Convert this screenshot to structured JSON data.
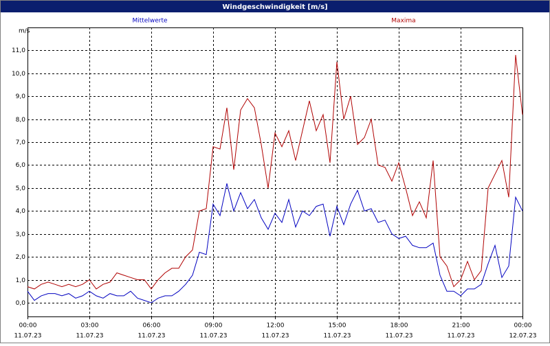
{
  "chart_data": {
    "type": "line",
    "title": "Windgeschwindigkeit [m/s]",
    "y_label": "m/s",
    "x": [
      0,
      20,
      40,
      60,
      80,
      100,
      120,
      140,
      160,
      180,
      200,
      220,
      240,
      260,
      280,
      300,
      320,
      340,
      360,
      380,
      400,
      420,
      440,
      460,
      480,
      500,
      520,
      540,
      560,
      580,
      600,
      620,
      640,
      660,
      680,
      700,
      720,
      740,
      760,
      780,
      800,
      820,
      840,
      860,
      880,
      900,
      920,
      940,
      960,
      980,
      1000,
      1020,
      1040,
      1060,
      1080,
      1100,
      1120,
      1140,
      1160,
      1180,
      1200,
      1220,
      1240,
      1260,
      1280,
      1300,
      1320,
      1340,
      1360,
      1380,
      1400,
      1420,
      1440
    ],
    "series": [
      {
        "name": "Mittelwerte",
        "color": "#0000c0",
        "values": [
          0.5,
          0.1,
          0.3,
          0.4,
          0.4,
          0.3,
          0.4,
          0.2,
          0.3,
          0.5,
          0.3,
          0.2,
          0.4,
          0.3,
          0.3,
          0.5,
          0.2,
          0.1,
          0.0,
          0.2,
          0.3,
          0.3,
          0.5,
          0.8,
          1.2,
          2.2,
          2.1,
          4.3,
          3.8,
          5.2,
          4.0,
          4.8,
          4.1,
          4.5,
          3.7,
          3.2,
          3.9,
          3.5,
          4.5,
          3.3,
          4.0,
          3.8,
          4.2,
          4.3,
          2.9,
          4.2,
          3.4,
          4.3,
          4.9,
          4.0,
          4.1,
          3.5,
          3.6,
          3.0,
          2.8,
          2.9,
          2.5,
          2.4,
          2.4,
          2.6,
          1.2,
          0.5,
          0.5,
          0.3,
          0.6,
          0.6,
          0.8,
          1.7,
          2.5,
          1.1,
          1.6,
          4.6,
          4.0
        ]
      },
      {
        "name": "Maxima",
        "color": "#b00000",
        "values": [
          0.7,
          0.6,
          0.8,
          0.9,
          0.8,
          0.7,
          0.8,
          0.7,
          0.8,
          1.0,
          0.6,
          0.8,
          0.9,
          1.3,
          1.2,
          1.1,
          1.0,
          1.0,
          0.6,
          1.0,
          1.3,
          1.5,
          1.5,
          2.0,
          2.3,
          4.0,
          4.1,
          6.8,
          6.7,
          8.5,
          5.8,
          8.4,
          8.9,
          8.5,
          6.9,
          5.0,
          7.4,
          6.8,
          7.5,
          6.2,
          7.5,
          8.8,
          7.5,
          8.2,
          6.1,
          10.5,
          8.0,
          9.0,
          6.9,
          7.2,
          8.0,
          6.0,
          5.9,
          5.3,
          6.1,
          5.0,
          3.8,
          4.4,
          3.7,
          6.2,
          2.0,
          1.6,
          0.7,
          1.0,
          1.8,
          1.0,
          1.4,
          5.0,
          5.6,
          6.2,
          4.6,
          10.8,
          8.2
        ]
      }
    ],
    "xlim": [
      0,
      1440
    ],
    "xticks": [
      {
        "value": 0,
        "label": [
          "00:00",
          "11.07.23"
        ]
      },
      {
        "value": 180,
        "label": [
          "03:00",
          "11.07.23"
        ]
      },
      {
        "value": 360,
        "label": [
          "06:00",
          "11.07.23"
        ]
      },
      {
        "value": 540,
        "label": [
          "09:00",
          "11.07.23"
        ]
      },
      {
        "value": 720,
        "label": [
          "12:00",
          "11.07.23"
        ]
      },
      {
        "value": 900,
        "label": [
          "15:00",
          "11.07.23"
        ]
      },
      {
        "value": 1080,
        "label": [
          "18:00",
          "11.07.23"
        ]
      },
      {
        "value": 1260,
        "label": [
          "21:00",
          "11.07.23"
        ]
      },
      {
        "value": 1440,
        "label": [
          "00:00",
          "12.07.23"
        ]
      }
    ],
    "ylim": [
      -0.6,
      12
    ],
    "yticks": [
      {
        "value": 0,
        "label": "0,0"
      },
      {
        "value": 1,
        "label": "1,0"
      },
      {
        "value": 2,
        "label": "2,0"
      },
      {
        "value": 3,
        "label": "3,0"
      },
      {
        "value": 4,
        "label": "4,0"
      },
      {
        "value": 5,
        "label": "5,0"
      },
      {
        "value": 6,
        "label": "6,0"
      },
      {
        "value": 7,
        "label": "7,0"
      },
      {
        "value": 8,
        "label": "8,0"
      },
      {
        "value": 9,
        "label": "9,0"
      },
      {
        "value": 10,
        "label": "10,0"
      },
      {
        "value": 11,
        "label": "11,0"
      }
    ],
    "grid": true
  }
}
